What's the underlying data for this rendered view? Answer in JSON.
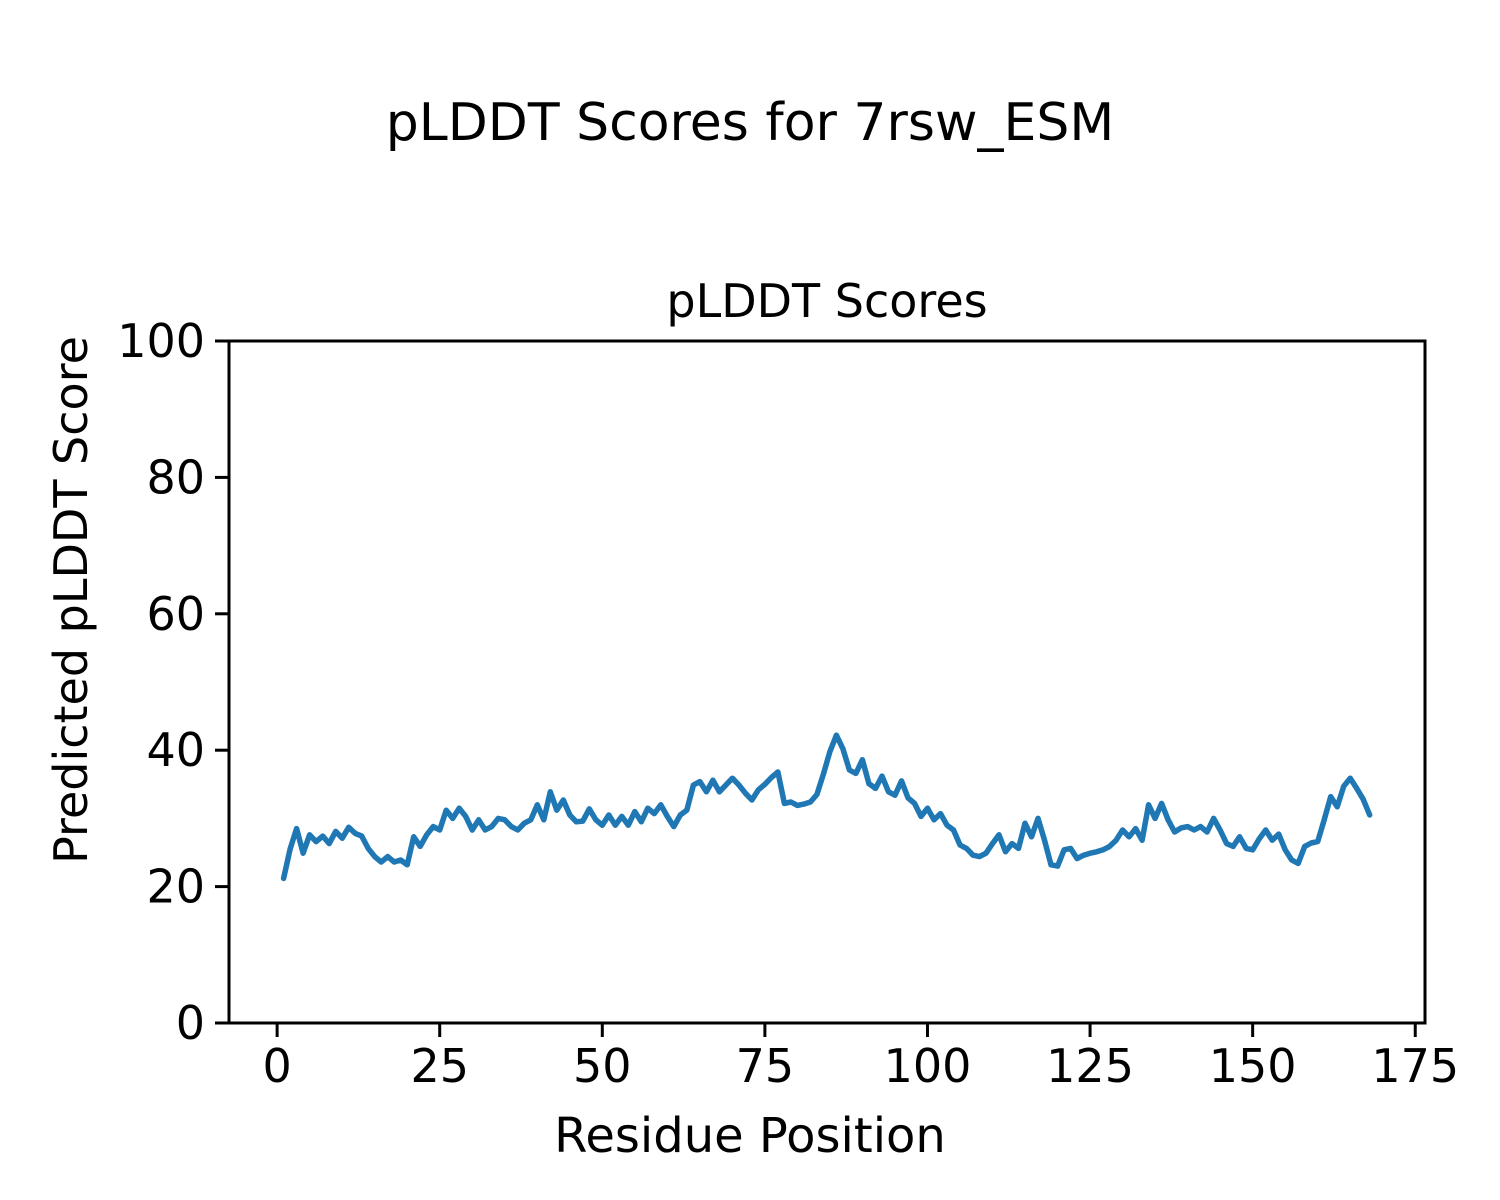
{
  "chart_data": {
    "type": "line",
    "title": "pLDDT Scores for 7rsw_ESM",
    "axes_title": "pLDDT Scores",
    "xlabel": "Residue Position",
    "ylabel": "Predicted pLDDT Score",
    "x_start": 1,
    "x_ticks": [
      0,
      25,
      50,
      75,
      100,
      125,
      150,
      175
    ],
    "y_ticks": [
      0,
      20,
      40,
      60,
      80,
      100
    ],
    "xlim": [
      -7.4,
      176.5
    ],
    "ylim": [
      0,
      100
    ],
    "grid": false,
    "legend": null,
    "line_color": "#1f77b4",
    "axis_color": "#000000",
    "background_color": "#ffffff",
    "values": [
      21.2,
      25.5,
      28.5,
      24.9,
      27.6,
      26.6,
      27.4,
      26.3,
      28.1,
      27.1,
      28.7,
      27.8,
      27.4,
      25.6,
      24.4,
      23.6,
      24.4,
      23.6,
      23.9,
      23.2,
      27.3,
      25.9,
      27.6,
      28.8,
      28.3,
      31.2,
      30.0,
      31.5,
      30.3,
      28.3,
      29.8,
      28.3,
      28.8,
      30.0,
      29.8,
      28.8,
      28.3,
      29.3,
      29.8,
      32.0,
      29.8,
      33.9,
      31.2,
      32.7,
      30.5,
      29.5,
      29.6,
      31.4,
      29.8,
      29.0,
      30.5,
      29.0,
      30.3,
      29.0,
      31.0,
      29.5,
      31.5,
      30.7,
      32.0,
      30.3,
      28.8,
      30.5,
      31.2,
      34.9,
      35.4,
      33.9,
      35.6,
      33.9,
      34.9,
      35.9,
      34.9,
      33.7,
      32.7,
      34.2,
      35.0,
      36.0,
      36.8,
      32.2,
      32.4,
      31.9,
      32.1,
      32.4,
      33.5,
      36.5,
      39.8,
      42.2,
      40.2,
      37.1,
      36.6,
      38.6,
      35.1,
      34.4,
      36.2,
      33.9,
      33.4,
      35.5,
      33.0,
      32.2,
      30.3,
      31.5,
      29.8,
      30.7,
      29.0,
      28.3,
      26.1,
      25.6,
      24.6,
      24.4,
      24.9,
      26.3,
      27.6,
      25.1,
      26.3,
      25.6,
      29.3,
      27.3,
      30.0,
      26.8,
      23.2,
      23.0,
      25.4,
      25.6,
      24.1,
      24.6,
      24.9,
      25.1,
      25.4,
      25.9,
      26.8,
      28.3,
      27.3,
      28.5,
      26.8,
      32.0,
      30.0,
      32.2,
      29.8,
      28.0,
      28.6,
      28.8,
      28.3,
      28.8,
      28.0,
      30.0,
      28.3,
      26.3,
      25.9,
      27.3,
      25.6,
      25.4,
      27.0,
      28.3,
      26.8,
      27.7,
      25.4,
      23.9,
      23.4,
      25.9,
      26.4,
      26.6,
      29.8,
      33.2,
      31.7,
      34.7,
      35.9,
      34.4,
      32.8,
      30.5
    ]
  }
}
